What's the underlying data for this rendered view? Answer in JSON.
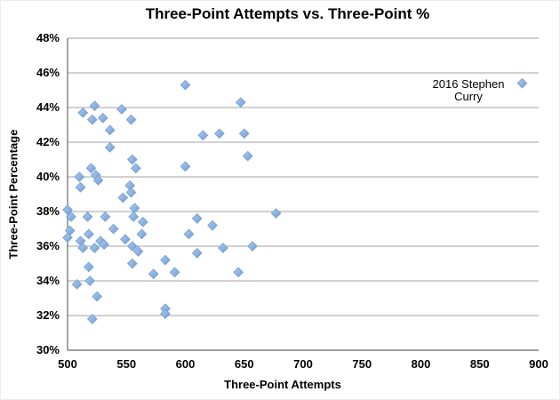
{
  "chart_data": {
    "type": "scatter",
    "title": "Three-Point Attempts vs. Three-Point %",
    "xlabel": "Three-Point Attempts",
    "ylabel": "Three-Point Percentage",
    "xlim": [
      500,
      900
    ],
    "ylim": [
      30,
      48
    ],
    "x_ticks": [
      500,
      550,
      600,
      650,
      700,
      750,
      800,
      850,
      900
    ],
    "y_ticks": [
      48,
      46,
      44,
      42,
      40,
      38,
      36,
      34,
      32,
      30
    ],
    "y_tick_labels": [
      "48%",
      "46%",
      "44%",
      "42%",
      "40%",
      "38%",
      "36%",
      "34%",
      "32%",
      "30%"
    ],
    "grid": "horizontal",
    "legend": "none",
    "colors": {
      "marker_fill": "#8DB4E2",
      "marker_fill_light": "#B7D0ED",
      "marker_fill_dark": "#6E9ED5",
      "marker_stroke": "#7BA2D4",
      "gridline": "#A3A3A3",
      "axis_line": "#7F7F7F",
      "text": "#000000",
      "background": "#FFFFFF"
    },
    "annotation": {
      "text": "2016 Stephen Curry",
      "line1": "2016 Stephen",
      "line2": "Curry",
      "x": 886,
      "y": 45.4
    },
    "points": [
      [
        600,
        45.3
      ],
      [
        886,
        45.4
      ],
      [
        647,
        44.3
      ],
      [
        523,
        44.1
      ],
      [
        546,
        43.9
      ],
      [
        513,
        43.7
      ],
      [
        530,
        43.4
      ],
      [
        521,
        43.3
      ],
      [
        554,
        43.3
      ],
      [
        536,
        42.7
      ],
      [
        615,
        42.4
      ],
      [
        629,
        42.5
      ],
      [
        650,
        42.5
      ],
      [
        536,
        41.7
      ],
      [
        653,
        41.2
      ],
      [
        555,
        41.0
      ],
      [
        558,
        40.5
      ],
      [
        520,
        40.5
      ],
      [
        600,
        40.6
      ],
      [
        510,
        40.0
      ],
      [
        524,
        40.1
      ],
      [
        526,
        39.8
      ],
      [
        511,
        39.4
      ],
      [
        553,
        39.5
      ],
      [
        554,
        39.1
      ],
      [
        547,
        38.8
      ],
      [
        500,
        38.1
      ],
      [
        557,
        38.2
      ],
      [
        677,
        37.9
      ],
      [
        503,
        37.7
      ],
      [
        517,
        37.7
      ],
      [
        532,
        37.7
      ],
      [
        556,
        37.7
      ],
      [
        564,
        37.4
      ],
      [
        610,
        37.6
      ],
      [
        623,
        37.2
      ],
      [
        502,
        36.9
      ],
      [
        539,
        37.0
      ],
      [
        518,
        36.7
      ],
      [
        563,
        36.7
      ],
      [
        603,
        36.7
      ],
      [
        500,
        36.5
      ],
      [
        511,
        36.3
      ],
      [
        528,
        36.3
      ],
      [
        531,
        36.1
      ],
      [
        549,
        36.4
      ],
      [
        513,
        35.9
      ],
      [
        523,
        35.9
      ],
      [
        555,
        36.0
      ],
      [
        560,
        35.7
      ],
      [
        610,
        35.6
      ],
      [
        632,
        35.9
      ],
      [
        657,
        36.0
      ],
      [
        645,
        34.5
      ],
      [
        555,
        35.0
      ],
      [
        583,
        35.2
      ],
      [
        573,
        34.4
      ],
      [
        591,
        34.5
      ],
      [
        518,
        34.8
      ],
      [
        508,
        33.8
      ],
      [
        519,
        34.0
      ],
      [
        525,
        33.1
      ],
      [
        583,
        32.4
      ],
      [
        583,
        32.1
      ],
      [
        521,
        31.8
      ]
    ]
  }
}
